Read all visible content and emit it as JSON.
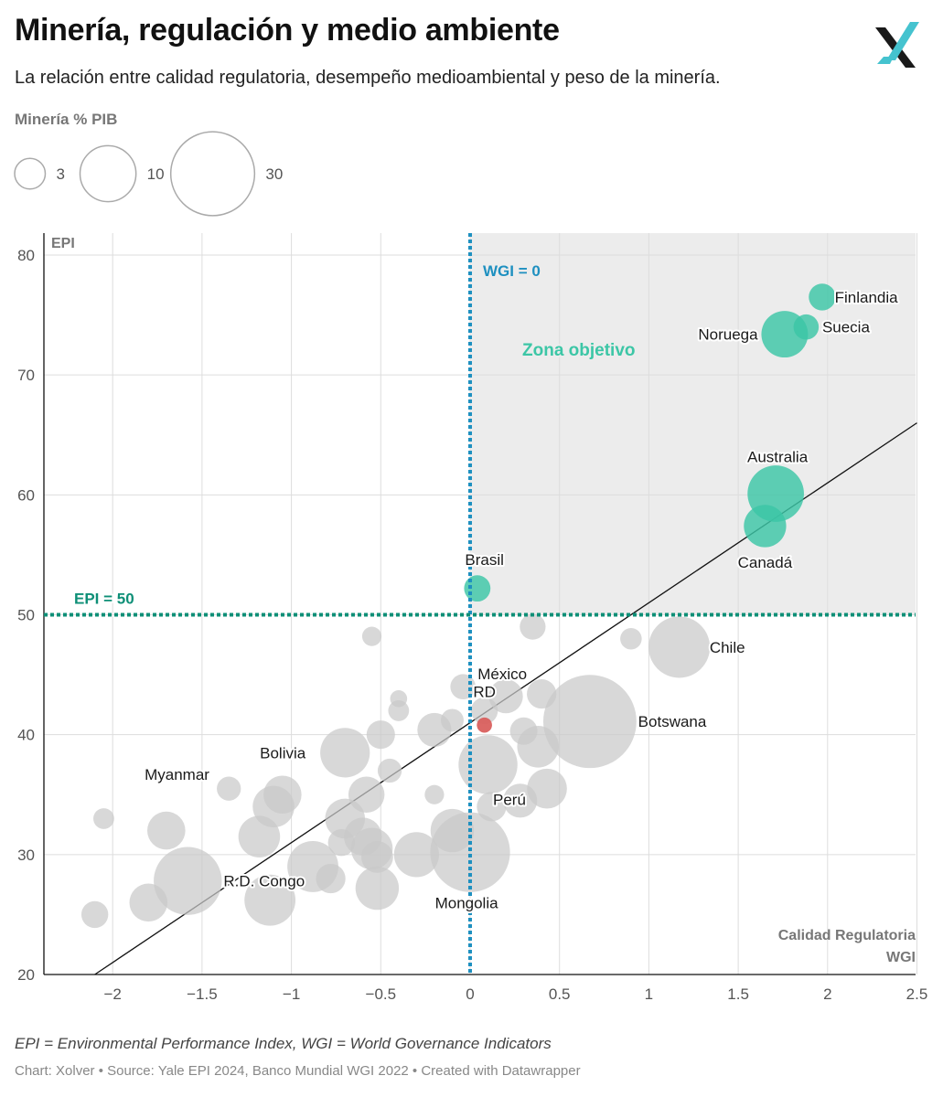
{
  "header": {
    "title": "Minería, regulación y medio ambiente",
    "subtitle": "La relación entre calidad regulatoria, desempeño medioambiental y peso de la minería."
  },
  "legend": {
    "title": "Minería % PIB",
    "sizes": [
      {
        "label": "3",
        "value": 3
      },
      {
        "label": "10",
        "value": 10
      },
      {
        "label": "30",
        "value": 30
      }
    ]
  },
  "footer": {
    "note": "EPI = Environmental Performance Index, WGI = World Governance Indicators",
    "credits": "Chart: Xolver • Source: Yale EPI 2024, Banco Mundial WGI 2022 • Created with Datawrapper"
  },
  "colors": {
    "target": "#3cc6a6",
    "highlight": "#d9605e",
    "other": "#c9c9c9",
    "wgi_line": "#1e90c0",
    "epi_line": "#0e8f77",
    "zone": "#ececec",
    "logo_teal": "#45c3cf",
    "logo_dark": "#1a1a1a"
  },
  "chart_data": {
    "type": "scatter",
    "ylabel": "EPI",
    "xlabel_lines": [
      "Calidad Regulatoria",
      "WGI"
    ],
    "xlim": [
      -2.4,
      2.5
    ],
    "ylim": [
      20,
      82
    ],
    "x_ticks": [
      {
        "value": -2,
        "label": "−2"
      },
      {
        "value": -1.5,
        "label": "−1.5"
      },
      {
        "value": -1,
        "label": "−1"
      },
      {
        "value": -0.5,
        "label": "−0.5"
      },
      {
        "value": 0,
        "label": "0"
      },
      {
        "value": 0.5,
        "label": "0.5"
      },
      {
        "value": 1,
        "label": "1"
      },
      {
        "value": 1.5,
        "label": "1.5"
      },
      {
        "value": 2,
        "label": "2"
      },
      {
        "value": 2.5,
        "label": "2.5"
      }
    ],
    "y_ticks": [
      {
        "value": 20,
        "label": "20"
      },
      {
        "value": 30,
        "label": "30"
      },
      {
        "value": 40,
        "label": "40"
      },
      {
        "value": 50,
        "label": "50"
      },
      {
        "value": 60,
        "label": "60"
      },
      {
        "value": 70,
        "label": "70"
      },
      {
        "value": 80,
        "label": "80"
      }
    ],
    "reference_lines": {
      "wgi": {
        "value": 0,
        "label": "WGI = 0"
      },
      "epi": {
        "value": 50,
        "label": "EPI = 50"
      }
    },
    "zone_label": "Zona objetivo",
    "trendline": {
      "x": [
        -2.1,
        2.5
      ],
      "y": [
        20,
        66
      ]
    },
    "points": [
      {
        "name": "Finlandia",
        "x": 1.97,
        "y": 76.5,
        "size": 2.5,
        "group": "target",
        "label_dx": 0.07,
        "label_dy": 0,
        "anchor": "start"
      },
      {
        "name": "Suecia",
        "x": 1.88,
        "y": 74.0,
        "size": 2.2,
        "group": "target",
        "label_dx": 0.09,
        "label_dy": 0,
        "anchor": "start"
      },
      {
        "name": "Noruega",
        "x": 1.76,
        "y": 73.4,
        "size": 7.5,
        "group": "target",
        "label_dx": -0.15,
        "label_dy": 0,
        "anchor": "end"
      },
      {
        "name": "Australia",
        "x": 1.71,
        "y": 60.1,
        "size": 11,
        "group": "target",
        "label_dx": 0.01,
        "label_dy": 3.1,
        "anchor": "middle"
      },
      {
        "name": "Canadá",
        "x": 1.65,
        "y": 57.4,
        "size": 6.2,
        "group": "target",
        "label_dx": 0.0,
        "label_dy": -3.0,
        "anchor": "middle"
      },
      {
        "name": "Brasil",
        "x": 0.04,
        "y": 52.2,
        "size": 2.4,
        "group": "target",
        "label_dx": 0.04,
        "label_dy": 2.4,
        "anchor": "middle"
      },
      {
        "name": "RD",
        "x": 0.08,
        "y": 40.8,
        "size": 0.8,
        "group": "highlight",
        "label_dx": 0.0,
        "label_dy": 2.8,
        "anchor": "middle"
      },
      {
        "name": "Chile",
        "x": 1.17,
        "y": 47.3,
        "size": 13,
        "group": "other",
        "label_dx": 0.17,
        "label_dy": 0,
        "anchor": "start"
      },
      {
        "name": "Botswana",
        "x": 0.67,
        "y": 41.1,
        "size": 30,
        "group": "other",
        "label_dx": 0.27,
        "label_dy": 0,
        "anchor": "start"
      },
      {
        "name": "Bolivia",
        "x": -0.7,
        "y": 38.5,
        "size": 8.5,
        "group": "other",
        "label_dx": -0.22,
        "label_dy": 0,
        "anchor": "end"
      },
      {
        "name": "Myanmar",
        "x": -1.7,
        "y": 32.0,
        "size": 5,
        "group": "other",
        "label_dx": 0.06,
        "label_dy": 4.7,
        "anchor": "middle"
      },
      {
        "name": "R.D. Congo",
        "x": -1.58,
        "y": 27.8,
        "size": 16,
        "group": "other",
        "label_dx": 0.2,
        "label_dy": 0,
        "anchor": "start"
      },
      {
        "name": "Mongolia",
        "x": 0.0,
        "y": 30.2,
        "size": 22,
        "group": "other",
        "label_dx": -0.02,
        "label_dy": -4.2,
        "anchor": "middle"
      },
      {
        "name": "México",
        "x": -0.04,
        "y": 44.0,
        "size": 2.2,
        "group": "other",
        "label_dx": 0.22,
        "label_dy": 1.1,
        "anchor": "middle"
      },
      {
        "name": "Perú",
        "x": 0.12,
        "y": 34.0,
        "size": 3.0,
        "group": "other",
        "label_dx": 0.1,
        "label_dy": 0.6,
        "anchor": "middle"
      },
      {
        "name": "",
        "x": -0.55,
        "y": 48.2,
        "size": 1.3,
        "group": "other"
      },
      {
        "name": "",
        "x": 0.35,
        "y": 49.0,
        "size": 2.3,
        "group": "other"
      },
      {
        "name": "",
        "x": 0.9,
        "y": 48.0,
        "size": 1.6,
        "group": "other"
      },
      {
        "name": "",
        "x": 0.2,
        "y": 43.2,
        "size": 4.0,
        "group": "other"
      },
      {
        "name": "",
        "x": 0.4,
        "y": 43.4,
        "size": 3.0,
        "group": "other"
      },
      {
        "name": "",
        "x": 0.08,
        "y": 42.0,
        "size": 2.5,
        "group": "other"
      },
      {
        "name": "",
        "x": -0.4,
        "y": 43.0,
        "size": 1.0,
        "group": "other"
      },
      {
        "name": "",
        "x": -0.4,
        "y": 42.0,
        "size": 1.5,
        "group": "other"
      },
      {
        "name": "",
        "x": -0.1,
        "y": 41.2,
        "size": 1.8,
        "group": "other"
      },
      {
        "name": "",
        "x": -0.2,
        "y": 40.4,
        "size": 4.0,
        "group": "other"
      },
      {
        "name": "",
        "x": -0.5,
        "y": 40.0,
        "size": 2.8,
        "group": "other"
      },
      {
        "name": "",
        "x": 0.3,
        "y": 40.3,
        "size": 2.6,
        "group": "other"
      },
      {
        "name": "",
        "x": 0.38,
        "y": 39.0,
        "size": 6.0,
        "group": "other"
      },
      {
        "name": "",
        "x": 0.1,
        "y": 37.5,
        "size": 12.0,
        "group": "other"
      },
      {
        "name": "",
        "x": -0.45,
        "y": 37.0,
        "size": 2.0,
        "group": "other"
      },
      {
        "name": "",
        "x": 0.43,
        "y": 35.5,
        "size": 5.5,
        "group": "other"
      },
      {
        "name": "",
        "x": 0.28,
        "y": 34.5,
        "size": 4.0,
        "group": "other"
      },
      {
        "name": "",
        "x": -0.58,
        "y": 35.0,
        "size": 4.5,
        "group": "other"
      },
      {
        "name": "",
        "x": -0.7,
        "y": 33.0,
        "size": 5.5,
        "group": "other"
      },
      {
        "name": "",
        "x": -1.05,
        "y": 35.0,
        "size": 5.0,
        "group": "other"
      },
      {
        "name": "",
        "x": -1.1,
        "y": 34.0,
        "size": 6.0,
        "group": "other"
      },
      {
        "name": "",
        "x": -1.35,
        "y": 35.5,
        "size": 2.0,
        "group": "other"
      },
      {
        "name": "",
        "x": -2.05,
        "y": 33.0,
        "size": 1.5,
        "group": "other"
      },
      {
        "name": "",
        "x": -1.18,
        "y": 31.5,
        "size": 6.0,
        "group": "other"
      },
      {
        "name": "",
        "x": -0.6,
        "y": 31.5,
        "size": 5.0,
        "group": "other"
      },
      {
        "name": "",
        "x": -0.55,
        "y": 30.5,
        "size": 6.0,
        "group": "other"
      },
      {
        "name": "",
        "x": -0.52,
        "y": 29.8,
        "size": 3.5,
        "group": "other"
      },
      {
        "name": "",
        "x": -0.72,
        "y": 31.0,
        "size": 2.5,
        "group": "other"
      },
      {
        "name": "",
        "x": -0.3,
        "y": 30.0,
        "size": 7.0,
        "group": "other"
      },
      {
        "name": "",
        "x": -0.1,
        "y": 32.0,
        "size": 6.5,
        "group": "other"
      },
      {
        "name": "",
        "x": -0.2,
        "y": 35.0,
        "size": 1.3,
        "group": "other"
      },
      {
        "name": "",
        "x": -0.88,
        "y": 29.0,
        "size": 9.0,
        "group": "other"
      },
      {
        "name": "",
        "x": -0.78,
        "y": 28.0,
        "size": 3.0,
        "group": "other"
      },
      {
        "name": "",
        "x": -0.52,
        "y": 27.2,
        "size": 6.5,
        "group": "other"
      },
      {
        "name": "",
        "x": -1.12,
        "y": 26.2,
        "size": 9.0,
        "group": "other"
      },
      {
        "name": "",
        "x": -1.8,
        "y": 26.0,
        "size": 5.0,
        "group": "other"
      },
      {
        "name": "",
        "x": -2.1,
        "y": 25.0,
        "size": 2.5,
        "group": "other"
      }
    ]
  }
}
